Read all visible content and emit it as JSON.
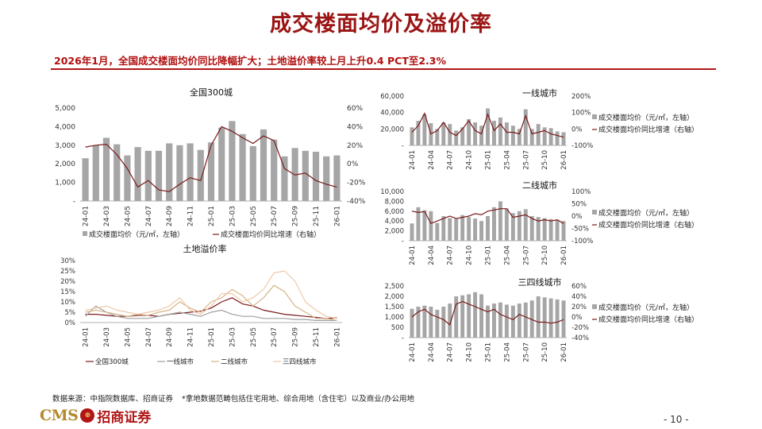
{
  "header": {
    "title": "成交楼面均价及溢价率",
    "subtitle": "2026年1月，全国成交楼面均价同比降幅扩大；土地溢价率较上月上升0.4 PCT至2.3%"
  },
  "footer": {
    "source": "数据来源：中指院数据库、招商证券",
    "note": "*拿地数据范畴包括住宅用地、综合用地（含住宅）以及商业/办公用地",
    "page": "- 10 -",
    "logo_text": "CMS",
    "logo_cn": "招商证券"
  },
  "colors": {
    "bar": "#a6a6a6",
    "line": "#7b1a1a",
    "title": "#9b1414",
    "rule": "#b01616"
  },
  "chart_data": [
    {
      "id": "national",
      "type": "bar",
      "title": "全国300城",
      "x_tick_labels": [
        "24-01",
        "24-03",
        "24-05",
        "24-07",
        "24-09",
        "24-11",
        "25-01",
        "25-03",
        "25-05",
        "25-07",
        "25-09",
        "25-11",
        "26-01"
      ],
      "x": [
        "24-01",
        "24-02",
        "24-03",
        "24-04",
        "24-05",
        "24-06",
        "24-07",
        "24-08",
        "24-09",
        "24-10",
        "24-11",
        "24-12",
        "25-01",
        "25-02",
        "25-03",
        "25-04",
        "25-05",
        "25-06",
        "25-07",
        "25-08",
        "25-09",
        "25-10",
        "25-11",
        "25-12",
        "26-01"
      ],
      "ylim": [
        0,
        5000
      ],
      "y_ticks": [
        0,
        1000,
        2000,
        3000,
        4000,
        5000
      ],
      "y_tick_labels": [
        "-",
        "1,000",
        "2,000",
        "3,000",
        "4,000",
        "5,000"
      ],
      "y2lim": [
        -40,
        60
      ],
      "y2_ticks": [
        -40,
        -20,
        0,
        20,
        40,
        60
      ],
      "y2_tick_labels": [
        "-40%",
        "-20%",
        "0%",
        "20%",
        "40%",
        "60%"
      ],
      "series": [
        {
          "name": "成交楼面均价（元/㎡，左轴）",
          "type": "bar",
          "axis": "left",
          "values": [
            2300,
            3000,
            3400,
            3050,
            2450,
            2900,
            2700,
            2700,
            3100,
            3000,
            3100,
            2750,
            3150,
            3950,
            4300,
            3600,
            2950,
            3850,
            3300,
            2400,
            2850,
            2700,
            2650,
            2400,
            2450
          ]
        },
        {
          "name": "成交楼面均价同比增速（右轴）",
          "type": "line",
          "axis": "right",
          "values": [
            18,
            20,
            21,
            10,
            -5,
            -25,
            -18,
            -28,
            -30,
            -22,
            -15,
            -18,
            20,
            40,
            35,
            28,
            22,
            30,
            25,
            -5,
            -12,
            -10,
            -18,
            -22,
            -25
          ]
        }
      ],
      "legend": "bottom"
    },
    {
      "id": "tier1",
      "type": "bar",
      "title": "一线城市",
      "x_tick_labels": [
        "24-01",
        "24-04",
        "24-07",
        "24-10",
        "25-01",
        "25-04",
        "25-07",
        "25-10",
        "26-01"
      ],
      "x": [
        "24-01",
        "24-02",
        "24-03",
        "24-04",
        "24-05",
        "24-06",
        "24-07",
        "24-08",
        "24-09",
        "24-10",
        "24-11",
        "24-12",
        "25-01",
        "25-02",
        "25-03",
        "25-04",
        "25-05",
        "25-06",
        "25-07",
        "25-08",
        "25-09",
        "25-10",
        "25-11",
        "25-12",
        "26-01"
      ],
      "ylim": [
        0,
        60000
      ],
      "y_ticks": [
        0,
        20000,
        40000,
        60000
      ],
      "y_tick_labels": [
        "-",
        "20,000",
        "40,000",
        "60,000"
      ],
      "y2lim": [
        -100,
        200
      ],
      "y2_ticks": [
        -100,
        0,
        100,
        200
      ],
      "y2_tick_labels": [
        "-100%",
        "0%",
        "100%",
        "200%"
      ],
      "series": [
        {
          "name": "成交楼面均价（元/㎡，左轴）",
          "type": "bar",
          "axis": "left",
          "values": [
            22000,
            30000,
            38000,
            27000,
            20000,
            28000,
            26000,
            18000,
            22000,
            32000,
            28000,
            24000,
            45000,
            30000,
            34000,
            28000,
            24000,
            20000,
            44000,
            20000,
            26000,
            22000,
            21000,
            17000,
            16000
          ]
        },
        {
          "name": "成交楼面均价同比增速（右轴）",
          "type": "line",
          "axis": "right",
          "values": [
            -20,
            20,
            95,
            -30,
            -10,
            40,
            -20,
            -40,
            0,
            50,
            -10,
            -30,
            90,
            -10,
            30,
            -20,
            -20,
            -30,
            80,
            -30,
            -20,
            -10,
            -30,
            -40,
            -50
          ]
        }
      ],
      "legend": "right"
    },
    {
      "id": "tier2",
      "type": "bar",
      "title": "二线城市",
      "x_tick_labels": [
        "24-01",
        "24-04",
        "24-07",
        "24-10",
        "25-01",
        "25-04",
        "25-07",
        "25-10",
        "26-01"
      ],
      "x": [
        "24-01",
        "24-02",
        "24-03",
        "24-04",
        "24-05",
        "24-06",
        "24-07",
        "24-08",
        "24-09",
        "24-10",
        "24-11",
        "24-12",
        "25-01",
        "25-02",
        "25-03",
        "25-04",
        "25-05",
        "25-06",
        "25-07",
        "25-08",
        "25-09",
        "25-10",
        "25-11",
        "25-12",
        "26-01"
      ],
      "ylim": [
        0,
        10000
      ],
      "y_ticks": [
        0,
        2000,
        4000,
        6000,
        8000,
        10000
      ],
      "y_tick_labels": [
        "-",
        "2,000",
        "4,000",
        "6,000",
        "8,000",
        "10,000"
      ],
      "y2lim": [
        -100,
        100
      ],
      "y2_ticks": [
        -100,
        -50,
        0,
        50,
        100
      ],
      "y2_tick_labels": [
        "-100%",
        "-50%",
        "0%",
        "50%",
        "100%"
      ],
      "series": [
        {
          "name": "成交楼面均价（元/㎡，左轴）",
          "type": "bar",
          "axis": "left",
          "values": [
            3500,
            6800,
            6200,
            6000,
            3600,
            5000,
            4600,
            4400,
            5200,
            4800,
            4500,
            4000,
            5000,
            6800,
            8000,
            6500,
            5600,
            6000,
            6400,
            5000,
            4800,
            4600,
            4400,
            4200,
            4000
          ]
        },
        {
          "name": "成交楼面均价同比增速（右轴）",
          "type": "line",
          "axis": "right",
          "values": [
            20,
            15,
            18,
            -30,
            -20,
            -10,
            0,
            -10,
            -5,
            0,
            10,
            5,
            20,
            25,
            30,
            30,
            -5,
            0,
            5,
            -10,
            -20,
            -15,
            -20,
            -15,
            -30
          ]
        }
      ],
      "legend": "right"
    },
    {
      "id": "tier34",
      "type": "bar",
      "title": "三四线城市",
      "x_tick_labels": [
        "24-01",
        "24-04",
        "24-07",
        "24-10",
        "25-01",
        "25-04",
        "25-07",
        "25-10",
        "26-01"
      ],
      "x": [
        "24-01",
        "24-02",
        "24-03",
        "24-04",
        "24-05",
        "24-06",
        "24-07",
        "24-08",
        "24-09",
        "24-10",
        "24-11",
        "24-12",
        "25-01",
        "25-02",
        "25-03",
        "25-04",
        "25-05",
        "25-06",
        "25-07",
        "25-08",
        "25-09",
        "25-10",
        "25-11",
        "25-12",
        "26-01"
      ],
      "ylim": [
        0,
        2500
      ],
      "y_ticks": [
        0,
        500,
        1000,
        1500,
        2000,
        2500
      ],
      "y_tick_labels": [
        "-",
        "500",
        "1,000",
        "1,500",
        "2,000",
        "2,500"
      ],
      "y2lim": [
        -40,
        60
      ],
      "y2_ticks": [
        -40,
        -20,
        0,
        20,
        40,
        60
      ],
      "y2_tick_labels": [
        "-40%",
        "-20%",
        "0%",
        "20%",
        "40%",
        "60%"
      ],
      "series": [
        {
          "name": "成交楼面均价（元/㎡，左轴）",
          "type": "bar",
          "axis": "left",
          "values": [
            1400,
            1500,
            1550,
            1500,
            1350,
            1500,
            1650,
            2000,
            2050,
            2100,
            2200,
            2100,
            1550,
            1650,
            1700,
            1600,
            1550,
            1650,
            1700,
            1800,
            2000,
            1950,
            1900,
            1850,
            1800
          ]
        },
        {
          "name": "成交楼面均价同比增速（右轴）",
          "type": "line",
          "axis": "right",
          "values": [
            0,
            10,
            15,
            5,
            0,
            -5,
            -15,
            25,
            30,
            25,
            20,
            15,
            10,
            15,
            5,
            0,
            -5,
            5,
            0,
            -5,
            -10,
            -10,
            -12,
            -10,
            -5
          ]
        }
      ],
      "legend": "right"
    },
    {
      "id": "premium",
      "type": "line",
      "title": "土地溢价率",
      "x_tick_labels": [
        "24-01",
        "24-03",
        "24-05",
        "24-07",
        "24-09",
        "24-11",
        "25-01",
        "25-03",
        "25-05",
        "25-07",
        "25-09",
        "25-11",
        "26-01"
      ],
      "x": [
        "24-01",
        "24-02",
        "24-03",
        "24-04",
        "24-05",
        "24-06",
        "24-07",
        "24-08",
        "24-09",
        "24-10",
        "24-11",
        "24-12",
        "25-01",
        "25-02",
        "25-03",
        "25-04",
        "25-05",
        "25-06",
        "25-07",
        "25-08",
        "25-09",
        "25-10",
        "25-11",
        "25-12",
        "26-01"
      ],
      "ylim": [
        0,
        30
      ],
      "y_ticks": [
        0,
        5,
        10,
        15,
        20,
        25,
        30
      ],
      "y_tick_labels": [
        "0%",
        "5%",
        "10%",
        "15%",
        "20%",
        "25%",
        "30%"
      ],
      "series": [
        {
          "name": "全国300城",
          "color": "#7b1a1a",
          "values": [
            4,
            4,
            3.5,
            3,
            3,
            3.5,
            3.5,
            3,
            4,
            4.5,
            5,
            5.5,
            7,
            10,
            12,
            9,
            8,
            6,
            5,
            4,
            3.5,
            3,
            2.5,
            1.9,
            2.3
          ]
        },
        {
          "name": "一线城市",
          "color": "#a0a0a0",
          "values": [
            3,
            8,
            5,
            3,
            2,
            2,
            2,
            3,
            4,
            5,
            4,
            3,
            5,
            6,
            4,
            3,
            3,
            2,
            2,
            2,
            1.5,
            1.5,
            1,
            1,
            1
          ]
        },
        {
          "name": "二线城市",
          "color": "#d6b48a",
          "values": [
            5,
            6,
            5,
            4,
            3,
            4,
            3.5,
            5,
            6,
            10,
            7,
            5,
            10,
            12,
            16,
            13,
            8,
            12,
            18,
            15,
            8,
            5,
            2,
            2,
            1
          ]
        },
        {
          "name": "三四线城市",
          "color": "#f0c8a8",
          "values": [
            6,
            7,
            8,
            6,
            5,
            4,
            5,
            6,
            8,
            12,
            6,
            4,
            8,
            14,
            14,
            10,
            12,
            16,
            24,
            25,
            20,
            10,
            6,
            3,
            2
          ]
        }
      ],
      "legend": "bottom"
    }
  ]
}
